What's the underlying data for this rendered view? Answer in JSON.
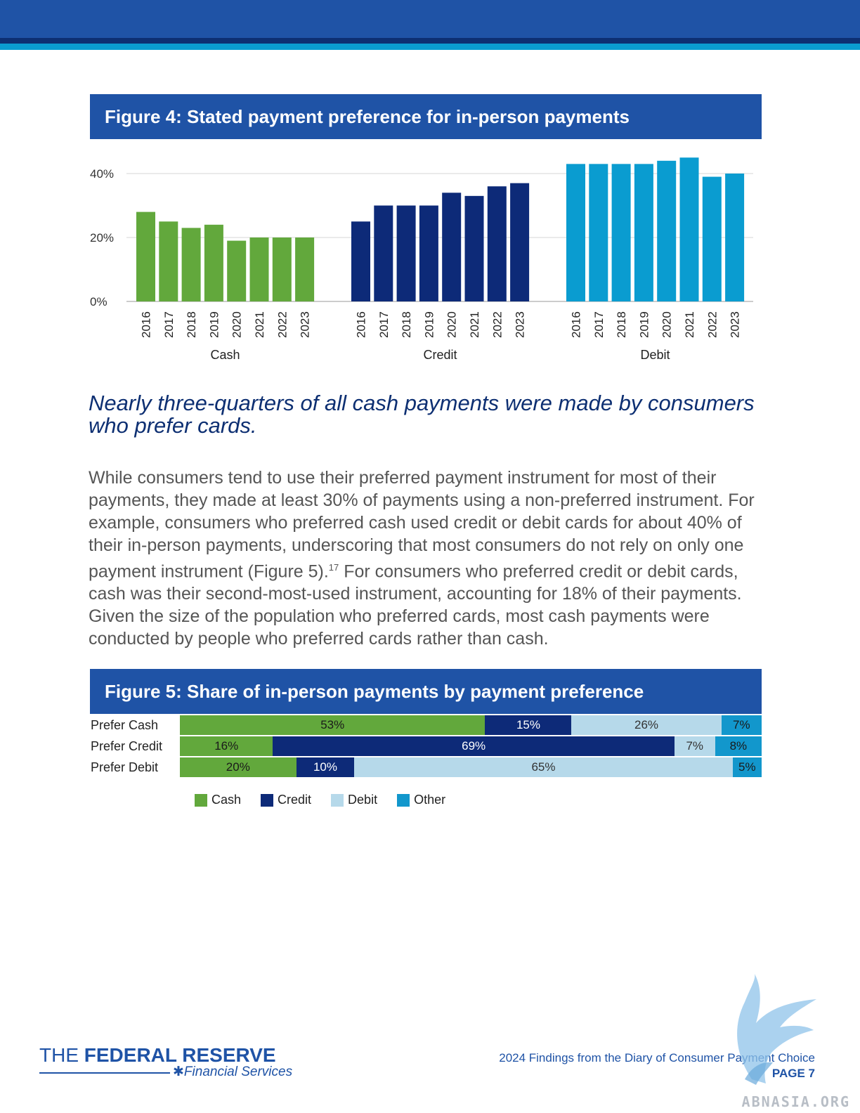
{
  "figure4": {
    "title": "Figure 4: Stated payment preference for in-person payments",
    "chart_data": {
      "type": "bar",
      "title": "Figure 4: Stated payment preference for in-person payments",
      "ylim": [
        0,
        45
      ],
      "yticks": [
        0,
        20,
        40
      ],
      "ytick_labels": [
        "0%",
        "20%",
        "40%"
      ],
      "grid": true,
      "groups": [
        {
          "name": "Cash",
          "color": "#62a83c",
          "years": [
            "2016",
            "2017",
            "2018",
            "2019",
            "2020",
            "2021",
            "2022",
            "2023"
          ],
          "values": [
            28,
            25,
            23,
            24,
            19,
            20,
            20,
            20
          ]
        },
        {
          "name": "Credit",
          "color": "#0d2a78",
          "years": [
            "2016",
            "2017",
            "2018",
            "2019",
            "2020",
            "2021",
            "2022",
            "2023"
          ],
          "values": [
            25,
            30,
            30,
            30,
            34,
            33,
            36,
            37
          ]
        },
        {
          "name": "Debit",
          "color": "#0a9cd0",
          "years": [
            "2016",
            "2017",
            "2018",
            "2019",
            "2020",
            "2021",
            "2022",
            "2023"
          ],
          "values": [
            43,
            43,
            43,
            43,
            44,
            45,
            39,
            40
          ]
        }
      ]
    }
  },
  "heading": "Nearly three-quarters of all cash payments were made by consumers who prefer cards.",
  "body": {
    "part1": "While consumers tend to use their preferred payment instrument for most of their payments, they made at least 30% of payments using a non-preferred instrument. For example, consumers who preferred cash used credit or debit cards for about 40% of their in-person payments, underscoring that most consumers do not rely on only one payment instrument (Figure 5).",
    "footnote_ref": "17",
    "part2": " For consumers who preferred credit or debit cards, cash was their second-most-used instrument, accounting for 18% of their payments. Given the size of the population who preferred cards, most cash payments were conducted by people who preferred cards rather than cash."
  },
  "figure5": {
    "title": "Figure 5: Share of in-person payments by payment preference",
    "chart_data": {
      "type": "bar",
      "orientation": "horizontal-stacked",
      "categories": [
        "Prefer Cash",
        "Prefer Credit",
        "Prefer Debit"
      ],
      "series": [
        {
          "name": "Cash",
          "color": "#62a83c",
          "values": [
            53,
            16,
            20
          ]
        },
        {
          "name": "Credit",
          "color": "#0d2a78",
          "values": [
            15,
            69,
            10
          ]
        },
        {
          "name": "Debit",
          "color": "#b6d9ea",
          "values": [
            26,
            7,
            65
          ]
        },
        {
          "name": "Other",
          "color": "#1297cc",
          "values": [
            7,
            8,
            5
          ]
        }
      ],
      "legend_position": "bottom"
    }
  },
  "footer": {
    "logo_line1_thin": "THE ",
    "logo_line1_bold": "FEDERAL RESERVE",
    "logo_line2": "Financial Services",
    "report_title": "2024 Findings from the Diary of Consumer Payment Choice",
    "page": "PAGE 7"
  },
  "watermark": "ABNASIA.ORG"
}
